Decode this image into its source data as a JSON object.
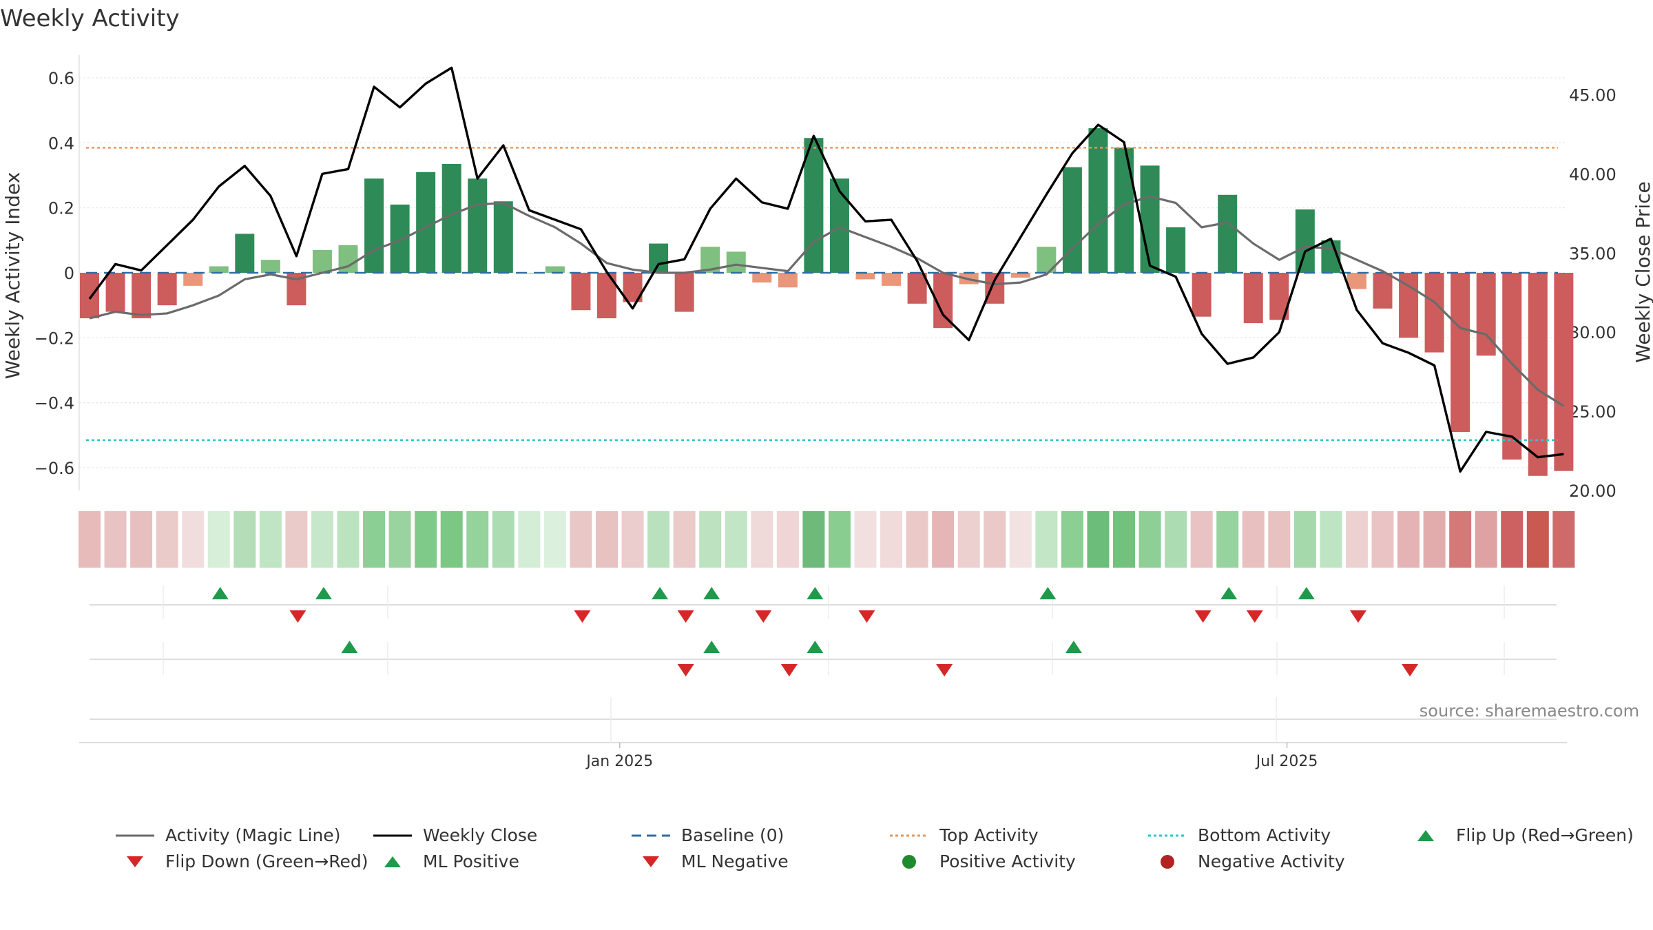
{
  "chart_data": {
    "type": "bar",
    "title": "Weekly Activity",
    "ylabel_left": "Weekly Activity Index",
    "ylabel_right": "Weekly Close Price",
    "ylim_left": [
      -0.67,
      0.67
    ],
    "ylim_right": [
      20.0,
      47.5
    ],
    "left_ticks": [
      {
        "v": 0.6,
        "label": "0.6"
      },
      {
        "v": 0.4,
        "label": "0.4"
      },
      {
        "v": 0.2,
        "label": "0.2"
      },
      {
        "v": 0,
        "label": "0"
      },
      {
        "v": -0.2,
        "label": "−0.2"
      },
      {
        "v": -0.4,
        "label": "−0.4"
      },
      {
        "v": -0.6,
        "label": "−0.6"
      }
    ],
    "right_ticks": [
      {
        "v": 45,
        "label": "45.00"
      },
      {
        "v": 40,
        "label": "40.00"
      },
      {
        "v": 35,
        "label": "35.00"
      },
      {
        "v": 30,
        "label": "30.00"
      },
      {
        "v": 25,
        "label": "25.00"
      },
      {
        "v": 20,
        "label": "20.00"
      }
    ],
    "x_tick_labels": [
      {
        "week": 20.5,
        "label": "Jan 2025"
      },
      {
        "week": 46.3,
        "label": "Jul 2025"
      }
    ],
    "top_activity": 0.385,
    "bottom_activity": -0.515,
    "source_text": "source: sharemaestro.com",
    "series": [
      {
        "name": "Activity Index",
        "values": [
          -0.14,
          -0.12,
          -0.14,
          -0.1,
          -0.04,
          0.02,
          0.12,
          0.04,
          -0.1,
          0.07,
          0.085,
          0.29,
          0.21,
          0.31,
          0.335,
          0.29,
          0.22,
          0.0,
          0.02,
          -0.115,
          -0.14,
          -0.09,
          0.09,
          -0.12,
          0.08,
          0.065,
          -0.03,
          -0.045,
          0.415,
          0.29,
          -0.02,
          -0.04,
          -0.095,
          -0.17,
          -0.035,
          -0.095,
          -0.015,
          0.08,
          0.325,
          0.445,
          0.385,
          0.33,
          0.14,
          -0.135,
          0.24,
          -0.155,
          -0.145,
          0.195,
          0.1,
          -0.05,
          -0.11,
          -0.2,
          -0.245,
          -0.49,
          -0.255,
          -0.575,
          -0.625,
          -0.61
        ]
      },
      {
        "name": "Weekly Close",
        "values": [
          32.1,
          34.3,
          33.9,
          35.5,
          37.1,
          39.2,
          40.5,
          38.6,
          34.8,
          40.0,
          40.3,
          45.5,
          44.2,
          45.7,
          46.7,
          39.7,
          41.8,
          37.7,
          37.1,
          36.5,
          33.8,
          31.5,
          34.3,
          34.6,
          37.8,
          39.7,
          38.2,
          37.8,
          42.4,
          38.9,
          37.0,
          37.1,
          34.5,
          31.1,
          29.5,
          33.3,
          36.0,
          38.7,
          41.3,
          43.1,
          42.0,
          34.2,
          33.5,
          29.9,
          28.0,
          28.4,
          30.0,
          35.1,
          35.9,
          31.4,
          29.3,
          28.7,
          27.9,
          21.2,
          23.7,
          23.4,
          22.1,
          22.3
        ]
      },
      {
        "name": "Activity (Magic Line)",
        "values": [
          -0.14,
          -0.12,
          -0.13,
          -0.125,
          -0.1,
          -0.07,
          -0.02,
          -0.005,
          -0.02,
          0.0,
          0.02,
          0.07,
          0.1,
          0.14,
          0.18,
          0.21,
          0.215,
          0.175,
          0.14,
          0.09,
          0.03,
          0.01,
          0.0,
          0.0,
          0.01,
          0.025,
          0.015,
          0.005,
          0.095,
          0.14,
          0.11,
          0.08,
          0.045,
          0.0,
          -0.02,
          -0.035,
          -0.03,
          -0.005,
          0.075,
          0.15,
          0.21,
          0.235,
          0.215,
          0.14,
          0.155,
          0.09,
          0.04,
          0.08,
          0.075,
          0.04,
          0.005,
          -0.04,
          -0.09,
          -0.17,
          -0.19,
          -0.28,
          -0.36,
          -0.41
        ]
      }
    ],
    "heat_colors": [
      "#e8bbbb",
      "#e9c3c3",
      "#e8bfbf",
      "#ebcaca",
      "#f1dddd",
      "#d7eed8",
      "#b3deb7",
      "#c0e5c4",
      "#ebcaca",
      "#c6e7c9",
      "#bce3c0",
      "#8ccf94",
      "#99d4a0",
      "#80ca89",
      "#7bc885",
      "#95d39c",
      "#acdcb1",
      "#d4edd6",
      "#dcf0de",
      "#eac7c7",
      "#e8c1c1",
      "#eccdcd",
      "#b9e1bd",
      "#ebcaca",
      "#bce2c0",
      "#c1e5c5",
      "#f0d9d9",
      "#efd5d5",
      "#6eba7a",
      "#89cd91",
      "#f2e0e0",
      "#f0dada",
      "#ebc9c9",
      "#e6b6b6",
      "#eccfcf",
      "#ebc9c9",
      "#f2e2e2",
      "#c3e6c6",
      "#8bcf93",
      "#6cbd79",
      "#72c27d",
      "#8dcf95",
      "#acdcb1",
      "#e9c3c3",
      "#96d39e",
      "#e8c0c0",
      "#e8c1c1",
      "#a5d8aa",
      "#bfe4c3",
      "#edd1d1",
      "#eac4c4",
      "#e5b3b3",
      "#e3acac",
      "#d47878",
      "#dfa2a2",
      "#cd6060",
      "#c85a52",
      "#cf6a6a"
    ],
    "flip_up_row1": [
      5,
      9,
      22,
      24,
      28,
      37,
      44,
      47
    ],
    "flip_down_row1": [
      8,
      19,
      23,
      26,
      30,
      43,
      45,
      49
    ],
    "ml_up_row2": [
      10,
      24,
      28,
      38
    ],
    "ml_down_row2": [
      23,
      27,
      33,
      51
    ],
    "legend": [
      {
        "kind": "line-solid",
        "color": "#6b6b6b",
        "label": "Activity (Magic Line)"
      },
      {
        "kind": "line-solid",
        "color": "#000000",
        "label": "Weekly Close"
      },
      {
        "kind": "line-dashed",
        "color": "#2f6da3",
        "label": "Baseline (0)"
      },
      {
        "kind": "line-dotted",
        "color": "#e8955a",
        "label": "Top Activity"
      },
      {
        "kind": "line-dotted",
        "color": "#2ec4cc",
        "label": "Bottom Activity"
      },
      {
        "kind": "tri-up",
        "color": "#1e9a4a",
        "label": "Flip Up (Red→Green)"
      },
      {
        "kind": "tri-down",
        "color": "#d62728",
        "label": "Flip Down (Green→Red)"
      },
      {
        "kind": "tri-up",
        "color": "#1e9a4a",
        "label": "ML Positive"
      },
      {
        "kind": "tri-down",
        "color": "#d62728",
        "label": "ML Negative"
      },
      {
        "kind": "dot",
        "color": "#1f8a2e",
        "label": "Positive Activity"
      },
      {
        "kind": "dot",
        "color": "#b22222",
        "label": "Negative Activity"
      }
    ],
    "colors": {
      "pos_strong": "#2e8b57",
      "pos_light": "#7fbf7f",
      "neg_strong": "#cd5c5c",
      "neg_light": "#e9967a"
    }
  }
}
